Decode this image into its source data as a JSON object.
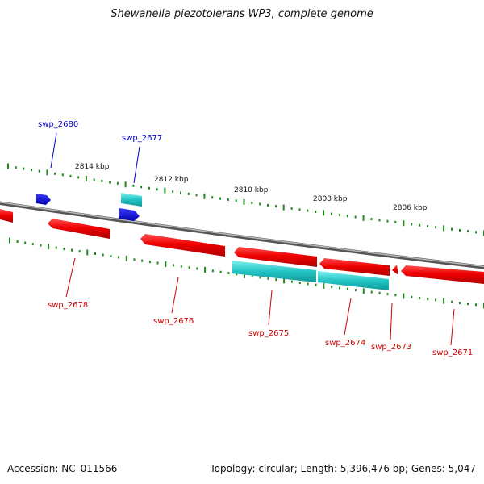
{
  "title": "Shewanella piezotolerans WP3, complete genome",
  "footer": {
    "accession": "Accession: NC_011566",
    "summary": "Topology: circular; Length: 5,396,476 bp; Genes: 5,047"
  },
  "colors": {
    "backbone": "#888888",
    "tick": "#1e8a1e",
    "forward_gene": "#e00000",
    "reverse_gene": "#0000cc",
    "forward_label": "#cc0000",
    "reverse_label": "#0000cc",
    "cyan_gene": "#22c4c4",
    "cyan_light": "#7ff0f0",
    "scale_text": "#111111"
  },
  "scale_labels": [
    {
      "text": "2814 kbp"
    },
    {
      "text": "2812 kbp"
    },
    {
      "text": "2810 kbp"
    },
    {
      "text": "2808 kbp"
    },
    {
      "text": "2806 kbp"
    }
  ],
  "genes": [
    {
      "id": "swp_2680",
      "strand": "top"
    },
    {
      "id": "swp_2677",
      "strand": "top"
    },
    {
      "id": "swp_2678",
      "strand": "bottom"
    },
    {
      "id": "swp_2676",
      "strand": "bottom"
    },
    {
      "id": "swp_2675",
      "strand": "bottom"
    },
    {
      "id": "swp_2674",
      "strand": "bottom"
    },
    {
      "id": "swp_2673",
      "strand": "bottom"
    },
    {
      "id": "swp_2671",
      "strand": "bottom"
    }
  ]
}
